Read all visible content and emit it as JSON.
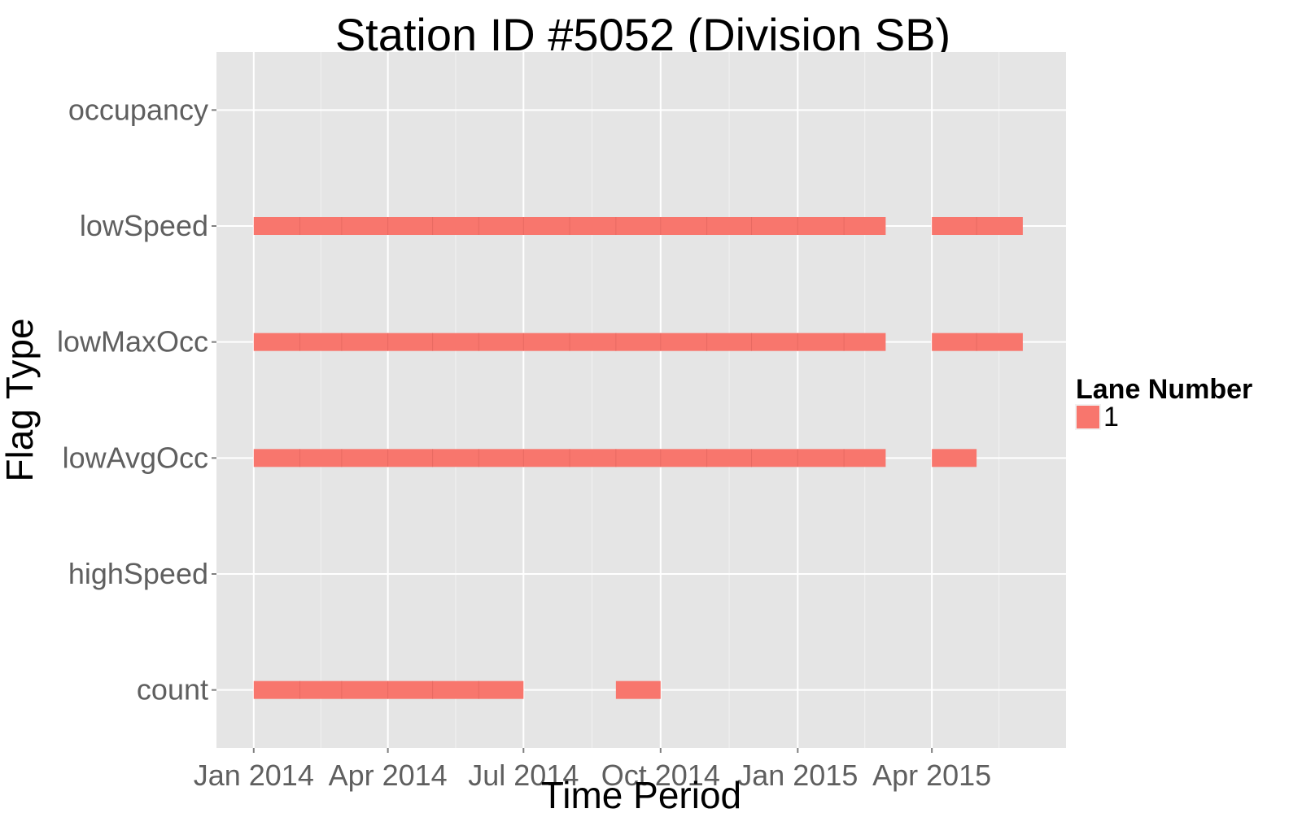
{
  "chart_data": {
    "type": "bar",
    "orientation": "horizontal-timeline",
    "title": "Station ID #5052 (Division SB)",
    "xlabel": "Time Period",
    "ylabel": "Flag Type",
    "categories": [
      "count",
      "highSpeed",
      "lowAvgOcc",
      "lowMaxOcc",
      "lowSpeed",
      "occupancy"
    ],
    "x_ticks": [
      {
        "date": "2014-01-01",
        "label": "Jan 2014"
      },
      {
        "date": "2014-04-01",
        "label": "Apr 2014"
      },
      {
        "date": "2014-07-01",
        "label": "Jul 2014"
      },
      {
        "date": "2014-10-01",
        "label": "Oct 2014"
      },
      {
        "date": "2015-01-01",
        "label": "Jan 2015"
      },
      {
        "date": "2015-04-01",
        "label": "Apr 2015"
      }
    ],
    "xlim": [
      "2013-12-07",
      "2015-06-30"
    ],
    "grid": true,
    "legend": {
      "title": "Lane Number",
      "position": "right",
      "items": [
        {
          "label": "1",
          "color": "#F8766D"
        }
      ]
    },
    "series": [
      {
        "name": "1",
        "color": "#F8766D",
        "segments": [
          {
            "category": "count",
            "start": "2014-01-01",
            "end": "2014-06-30"
          },
          {
            "category": "count",
            "start": "2014-09-01",
            "end": "2014-09-30"
          },
          {
            "category": "lowAvgOcc",
            "start": "2014-01-01",
            "end": "2015-02-28"
          },
          {
            "category": "lowAvgOcc",
            "start": "2015-04-01",
            "end": "2015-04-30"
          },
          {
            "category": "lowMaxOcc",
            "start": "2014-01-01",
            "end": "2015-02-28"
          },
          {
            "category": "lowMaxOcc",
            "start": "2015-04-01",
            "end": "2015-05-31"
          },
          {
            "category": "lowSpeed",
            "start": "2014-01-01",
            "end": "2015-02-28"
          },
          {
            "category": "lowSpeed",
            "start": "2015-04-01",
            "end": "2015-05-31"
          }
        ]
      }
    ],
    "colors": {
      "panel_background": "#E5E5E5",
      "grid_major": "#FFFFFF",
      "grid_minor": "#F2F2F2",
      "bar": "#F8766D"
    }
  }
}
